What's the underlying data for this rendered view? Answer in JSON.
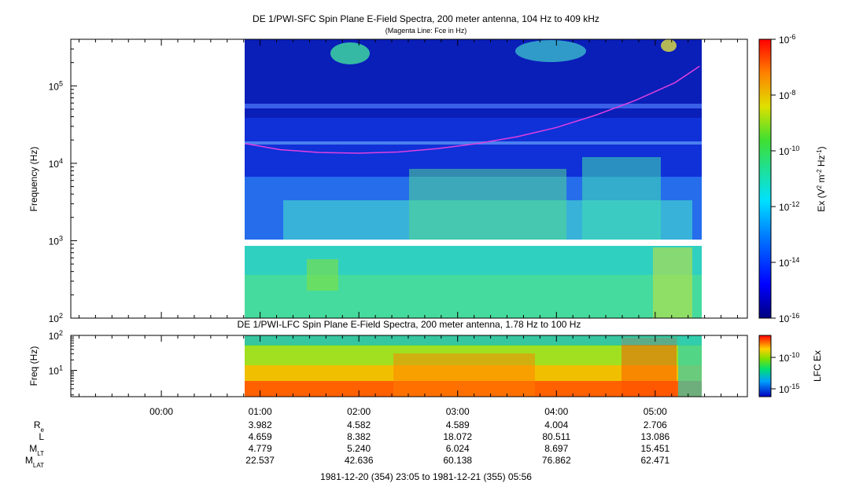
{
  "chart_data": [
    {
      "type": "heatmap",
      "title": "DE 1/PWI-SFC  Spin Plane E-Field Spectra, 200 meter antenna, 104 Hz to 409 kHz",
      "subtitle": "(Magenta Line: Fce in Hz)",
      "ylabel": "Frequency (Hz)",
      "yscale": "log",
      "ylim": [
        100,
        400000
      ],
      "yticks": [
        {
          "base": "10",
          "exp": "2",
          "value": 100
        },
        {
          "base": "10",
          "exp": "3",
          "value": 1000
        },
        {
          "base": "10",
          "exp": "4",
          "value": 10000
        },
        {
          "base": "10",
          "exp": "5",
          "value": 100000
        }
      ],
      "data_time_range": [
        "00:50",
        "05:26"
      ],
      "colorbar": {
        "label": "Ex (V² m⁻² Hz⁻¹)",
        "label_parts": {
          "pre": "Ex (V",
          "sup1": "2",
          "mid1": " m",
          "sup2": "-2",
          "mid2": " Hz",
          "sup3": "-1",
          "post": ")"
        },
        "scale": "log",
        "range": [
          1e-16,
          1e-06
        ],
        "ticks": [
          {
            "base": "10",
            "exp": "-6"
          },
          {
            "base": "10",
            "exp": "-8"
          },
          {
            "base": "10",
            "exp": "-10"
          },
          {
            "base": "10",
            "exp": "-12"
          },
          {
            "base": "10",
            "exp": "-14"
          },
          {
            "base": "10",
            "exp": "-16"
          }
        ]
      },
      "fce_line": {
        "color": "#e040e0",
        "times_hours": [
          0.85,
          1.2,
          1.6,
          2.0,
          2.4,
          2.8,
          3.2,
          3.6,
          4.0,
          4.4,
          4.8,
          5.2,
          5.45
        ],
        "fce_hz": [
          18000,
          15000,
          13800,
          13500,
          14000,
          15500,
          18000,
          22000,
          29000,
          42000,
          65000,
          110000,
          180000
        ]
      }
    },
    {
      "type": "heatmap",
      "title": "DE 1/PWI-LFC  Spin Plane E-Field Spectra, 200 meter antenna, 1.78 Hz to 100 Hz",
      "ylabel": "Freq (Hz)",
      "yscale": "log",
      "ylim": [
        1.78,
        100
      ],
      "yticks": [
        {
          "base": "10",
          "exp": "1",
          "value": 10
        },
        {
          "base": "10",
          "exp": "2",
          "value": 100
        }
      ],
      "data_time_range": [
        "00:50",
        "05:26"
      ],
      "colorbar": {
        "label": "LFC Ex",
        "scale": "log",
        "ticks": [
          {
            "base": "10",
            "exp": "-10"
          },
          {
            "base": "10",
            "exp": "-15"
          }
        ]
      }
    }
  ],
  "x_axis": {
    "start_hours": -0.91667,
    "end_hours": 5.9333,
    "tick_labels": [
      {
        "label": "00:00",
        "hours": 0
      },
      {
        "label": "01:00",
        "hours": 1
      },
      {
        "label": "02:00",
        "hours": 2
      },
      {
        "label": "03:00",
        "hours": 3
      },
      {
        "label": "04:00",
        "hours": 4
      },
      {
        "label": "05:00",
        "hours": 5
      }
    ]
  },
  "ephemeris": {
    "rows": [
      {
        "name": "R",
        "sub": "e",
        "values": [
          "3.982",
          "4.582",
          "4.589",
          "4.004",
          "2.706"
        ]
      },
      {
        "name": "L",
        "sub": "",
        "values": [
          "4.659",
          "8.382",
          "18.072",
          "80.511",
          "13.086"
        ]
      },
      {
        "name": "M",
        "sub": "LT",
        "values": [
          "4.779",
          "5.240",
          "6.024",
          "8.697",
          "15.451"
        ]
      },
      {
        "name": "M",
        "sub": "LAT",
        "values": [
          "22.537",
          "42.636",
          "60.138",
          "76.862",
          "62.471"
        ]
      }
    ],
    "time_range": "1981-12-20 (354) 23:05 to 1981-12-21 (355) 05:56"
  }
}
